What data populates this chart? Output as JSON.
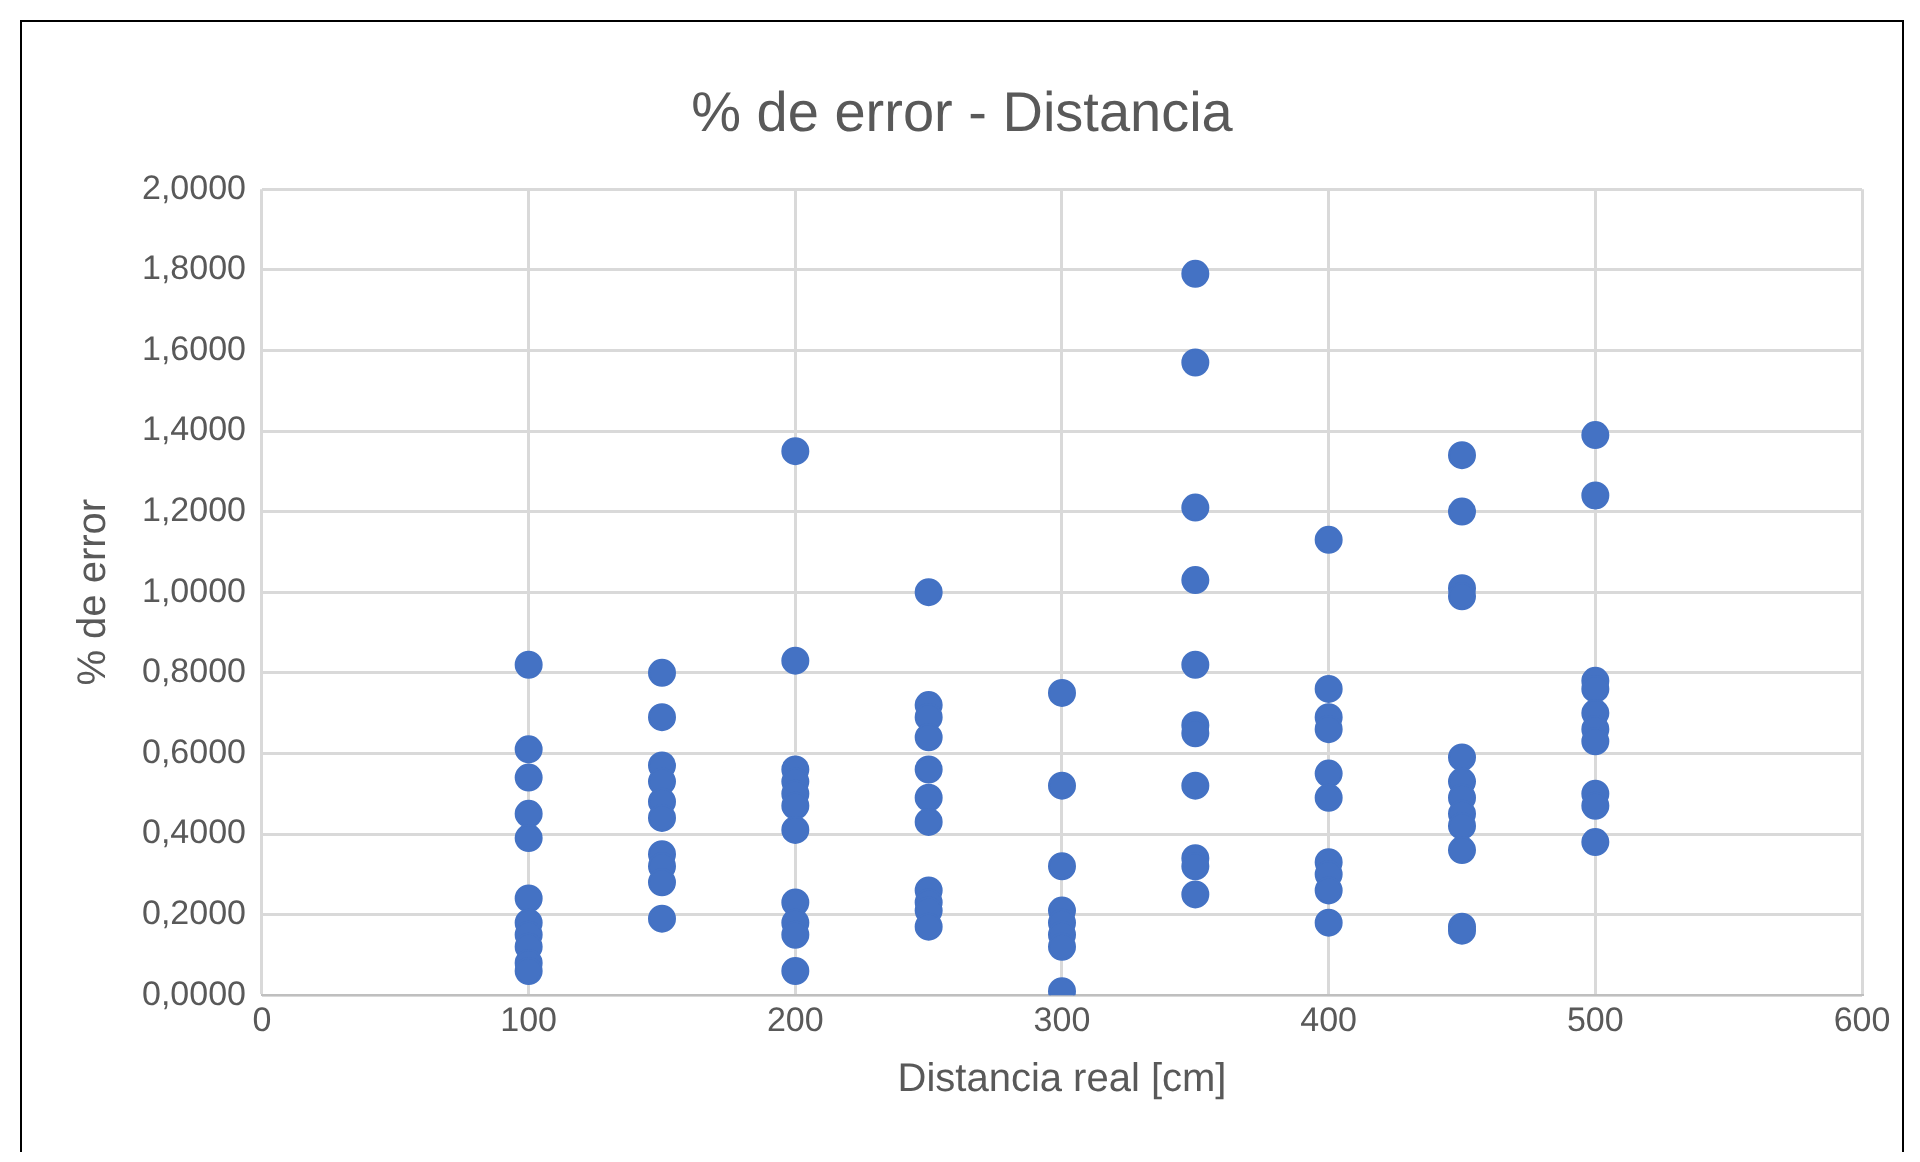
{
  "chart_data": {
    "type": "scatter",
    "title": "% de error - Distancia",
    "xlabel": "Distancia real [cm]",
    "ylabel": "% de error",
    "series": [
      {
        "color": "#4472c4",
        "x": [
          100,
          100,
          100,
          100,
          100,
          100,
          100,
          100,
          100,
          100,
          100,
          150,
          150,
          150,
          150,
          150,
          150,
          150,
          150,
          150,
          150,
          200,
          200,
          200,
          200,
          200,
          200,
          200,
          200,
          200,
          200,
          200,
          250,
          250,
          250,
          250,
          250,
          250,
          250,
          250,
          250,
          250,
          250,
          300,
          300,
          300,
          300,
          300,
          300,
          300,
          300,
          350,
          350,
          350,
          350,
          350,
          350,
          350,
          350,
          350,
          350,
          350,
          400,
          400,
          400,
          400,
          400,
          400,
          400,
          400,
          400,
          400,
          450,
          450,
          450,
          450,
          450,
          450,
          450,
          450,
          450,
          450,
          450,
          450,
          500,
          500,
          500,
          500,
          500,
          500,
          500,
          500,
          500,
          500
        ],
        "values": [
          0.82,
          0.61,
          0.54,
          0.45,
          0.39,
          0.24,
          0.18,
          0.15,
          0.12,
          0.08,
          0.06,
          0.8,
          0.69,
          0.57,
          0.53,
          0.48,
          0.44,
          0.35,
          0.32,
          0.28,
          0.19,
          1.35,
          0.83,
          0.56,
          0.53,
          0.5,
          0.47,
          0.41,
          0.23,
          0.18,
          0.15,
          0.06,
          1.0,
          0.72,
          0.69,
          0.64,
          0.56,
          0.49,
          0.43,
          0.26,
          0.23,
          0.21,
          0.17,
          0.75,
          0.52,
          0.32,
          0.21,
          0.18,
          0.15,
          0.12,
          0.01,
          1.79,
          1.57,
          1.21,
          1.03,
          0.82,
          0.67,
          0.65,
          0.52,
          0.34,
          0.32,
          0.25,
          1.13,
          0.76,
          0.69,
          0.66,
          0.55,
          0.49,
          0.33,
          0.3,
          0.26,
          0.18,
          1.34,
          1.2,
          1.01,
          0.99,
          0.59,
          0.53,
          0.49,
          0.45,
          0.42,
          0.36,
          0.17,
          0.16,
          1.39,
          1.24,
          0.78,
          0.76,
          0.7,
          0.66,
          0.63,
          0.5,
          0.47,
          0.38
        ]
      }
    ],
    "xlim": [
      0,
      600
    ],
    "xticks": [
      0,
      100,
      200,
      300,
      400,
      500,
      600
    ],
    "ylim": [
      0,
      2
    ],
    "yticks": [
      {
        "value": 0,
        "label": "0,0000"
      },
      {
        "value": 0.2,
        "label": "0,2000"
      },
      {
        "value": 0.4,
        "label": "0,4000"
      },
      {
        "value": 0.6,
        "label": "0,6000"
      },
      {
        "value": 0.8,
        "label": "0,8000"
      },
      {
        "value": 1,
        "label": "1,0000"
      },
      {
        "value": 1.2,
        "label": "1,2000"
      },
      {
        "value": 1.4,
        "label": "1,4000"
      },
      {
        "value": 1.6,
        "label": "1,6000"
      },
      {
        "value": 1.8,
        "label": "1,8000"
      },
      {
        "value": 2,
        "label": "2,0000"
      }
    ],
    "grid": true,
    "marker": "circle",
    "legend": false
  }
}
